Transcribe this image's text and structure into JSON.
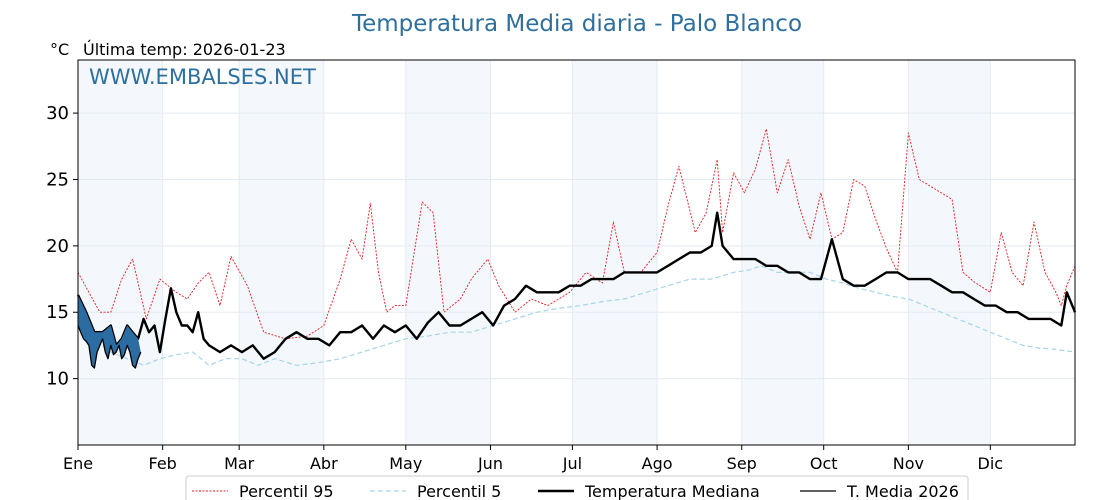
{
  "chart_data": {
    "type": "line",
    "title": "Temperatura Media diaria - Palo Blanco",
    "subtitle": "Última temp: 2026-01-23",
    "unit": "°C",
    "watermark": "WWW.EMBALSES.NET",
    "ylim": [
      5,
      34
    ],
    "xlim": [
      0,
      365
    ],
    "yticks": [
      10,
      15,
      20,
      25,
      30
    ],
    "months": [
      "Ene",
      "Feb",
      "Mar",
      "Abr",
      "May",
      "Jun",
      "Jul",
      "Ago",
      "Sep",
      "Oct",
      "Nov",
      "Dic"
    ],
    "month_starts": [
      0,
      31,
      59,
      90,
      120,
      151,
      181,
      212,
      243,
      273,
      304,
      334
    ],
    "grid": true,
    "legend_position": "bottom",
    "series": [
      {
        "name": "Percentil 95",
        "color": "#e31a1c",
        "style": "dotted",
        "points": [
          [
            0,
            18
          ],
          [
            4,
            16.5
          ],
          [
            8,
            15
          ],
          [
            12,
            15
          ],
          [
            16,
            17.5
          ],
          [
            20,
            19
          ],
          [
            25,
            14.5
          ],
          [
            30,
            17.5
          ],
          [
            36,
            16.5
          ],
          [
            40,
            16
          ],
          [
            44,
            17.2
          ],
          [
            48,
            18
          ],
          [
            52,
            15.5
          ],
          [
            56,
            19.2
          ],
          [
            62,
            17
          ],
          [
            68,
            13.5
          ],
          [
            76,
            13
          ],
          [
            84,
            13.2
          ],
          [
            90,
            14
          ],
          [
            96,
            17.5
          ],
          [
            100,
            20.5
          ],
          [
            104,
            19
          ],
          [
            107,
            23.2
          ],
          [
            110,
            18
          ],
          [
            113,
            15
          ],
          [
            116,
            15.5
          ],
          [
            120,
            15.5
          ],
          [
            126,
            23.3
          ],
          [
            130,
            22.5
          ],
          [
            134,
            15
          ],
          [
            140,
            16
          ],
          [
            144,
            17.5
          ],
          [
            150,
            19
          ],
          [
            154,
            17
          ],
          [
            160,
            15
          ],
          [
            166,
            16
          ],
          [
            172,
            15.5
          ],
          [
            180,
            16.5
          ],
          [
            186,
            18
          ],
          [
            192,
            17.2
          ],
          [
            196,
            21.8
          ],
          [
            200,
            18
          ],
          [
            206,
            18
          ],
          [
            212,
            19.5
          ],
          [
            216,
            23
          ],
          [
            220,
            26
          ],
          [
            226,
            21
          ],
          [
            230,
            22.5
          ],
          [
            234,
            26.5
          ],
          [
            236,
            21
          ],
          [
            240,
            25.5
          ],
          [
            244,
            24
          ],
          [
            248,
            25.8
          ],
          [
            252,
            28.8
          ],
          [
            256,
            24
          ],
          [
            260,
            26.5
          ],
          [
            264,
            23
          ],
          [
            268,
            20.5
          ],
          [
            272,
            24
          ],
          [
            276,
            20.5
          ],
          [
            280,
            21
          ],
          [
            284,
            25
          ],
          [
            288,
            24.5
          ],
          [
            292,
            22
          ],
          [
            296,
            19.8
          ],
          [
            300,
            18
          ],
          [
            304,
            28.5
          ],
          [
            308,
            25
          ],
          [
            312,
            24.5
          ],
          [
            316,
            24
          ],
          [
            320,
            23.5
          ],
          [
            324,
            18
          ],
          [
            328,
            17.3
          ],
          [
            334,
            16.5
          ],
          [
            338,
            21
          ],
          [
            342,
            18
          ],
          [
            346,
            17
          ],
          [
            350,
            21.8
          ],
          [
            354,
            18
          ],
          [
            358,
            16.5
          ],
          [
            360,
            15.5
          ],
          [
            362,
            17
          ],
          [
            365,
            18.5
          ]
        ]
      },
      {
        "name": "Percentil 5",
        "color": "#a6d5e8",
        "style": "dashed",
        "points": [
          [
            0,
            14
          ],
          [
            6,
            13
          ],
          [
            12,
            12
          ],
          [
            18,
            11.5
          ],
          [
            24,
            11
          ],
          [
            30,
            11.5
          ],
          [
            36,
            11.8
          ],
          [
            42,
            12
          ],
          [
            48,
            11
          ],
          [
            54,
            11.5
          ],
          [
            60,
            11.5
          ],
          [
            66,
            11
          ],
          [
            72,
            11.5
          ],
          [
            80,
            11
          ],
          [
            88,
            11.2
          ],
          [
            96,
            11.5
          ],
          [
            104,
            12
          ],
          [
            112,
            12.5
          ],
          [
            120,
            13
          ],
          [
            128,
            13.2
          ],
          [
            136,
            13.5
          ],
          [
            144,
            13.5
          ],
          [
            152,
            14
          ],
          [
            160,
            14.5
          ],
          [
            168,
            15
          ],
          [
            176,
            15.3
          ],
          [
            184,
            15.5
          ],
          [
            192,
            15.8
          ],
          [
            200,
            16
          ],
          [
            208,
            16.5
          ],
          [
            216,
            17
          ],
          [
            224,
            17.5
          ],
          [
            232,
            17.5
          ],
          [
            240,
            18
          ],
          [
            246,
            18.2
          ],
          [
            250,
            18.5
          ],
          [
            256,
            18
          ],
          [
            262,
            18
          ],
          [
            268,
            18
          ],
          [
            274,
            17.5
          ],
          [
            280,
            17.2
          ],
          [
            286,
            16.8
          ],
          [
            292,
            16.5
          ],
          [
            298,
            16.2
          ],
          [
            304,
            16
          ],
          [
            310,
            15.5
          ],
          [
            316,
            15
          ],
          [
            322,
            14.5
          ],
          [
            328,
            14
          ],
          [
            334,
            13.5
          ],
          [
            340,
            13
          ],
          [
            346,
            12.5
          ],
          [
            352,
            12.3
          ],
          [
            358,
            12.2
          ],
          [
            365,
            12
          ]
        ]
      },
      {
        "name": "Temperatura Mediana",
        "color": "#000000",
        "style": "solid",
        "points": [
          [
            0,
            16.3
          ],
          [
            3,
            15
          ],
          [
            6,
            13.5
          ],
          [
            9,
            13.5
          ],
          [
            12,
            14
          ],
          [
            14,
            12.5
          ],
          [
            16,
            13
          ],
          [
            18,
            14
          ],
          [
            20,
            13.5
          ],
          [
            22,
            13
          ],
          [
            24,
            14.5
          ],
          [
            26,
            13.5
          ],
          [
            28,
            14
          ],
          [
            30,
            12
          ],
          [
            32,
            14.5
          ],
          [
            34,
            16.8
          ],
          [
            36,
            15
          ],
          [
            38,
            14
          ],
          [
            40,
            14
          ],
          [
            42,
            13.5
          ],
          [
            44,
            15
          ],
          [
            46,
            13
          ],
          [
            48,
            12.5
          ],
          [
            52,
            12
          ],
          [
            56,
            12.5
          ],
          [
            60,
            12
          ],
          [
            64,
            12.5
          ],
          [
            68,
            11.5
          ],
          [
            72,
            12
          ],
          [
            76,
            13
          ],
          [
            80,
            13.5
          ],
          [
            84,
            13
          ],
          [
            88,
            13
          ],
          [
            92,
            12.5
          ],
          [
            96,
            13.5
          ],
          [
            100,
            13.5
          ],
          [
            104,
            14
          ],
          [
            108,
            13
          ],
          [
            112,
            14
          ],
          [
            116,
            13.5
          ],
          [
            120,
            14
          ],
          [
            124,
            13
          ],
          [
            128,
            14.2
          ],
          [
            132,
            15
          ],
          [
            136,
            14
          ],
          [
            140,
            14
          ],
          [
            144,
            14.5
          ],
          [
            148,
            15
          ],
          [
            152,
            14
          ],
          [
            156,
            15.5
          ],
          [
            160,
            16
          ],
          [
            164,
            17
          ],
          [
            168,
            16.5
          ],
          [
            172,
            16.5
          ],
          [
            176,
            16.5
          ],
          [
            180,
            17
          ],
          [
            184,
            17
          ],
          [
            188,
            17.5
          ],
          [
            192,
            17.5
          ],
          [
            196,
            17.5
          ],
          [
            200,
            18
          ],
          [
            204,
            18
          ],
          [
            208,
            18
          ],
          [
            212,
            18
          ],
          [
            216,
            18.5
          ],
          [
            220,
            19
          ],
          [
            224,
            19.5
          ],
          [
            228,
            19.5
          ],
          [
            232,
            20
          ],
          [
            234,
            22.5
          ],
          [
            236,
            20
          ],
          [
            240,
            19
          ],
          [
            244,
            19
          ],
          [
            248,
            19
          ],
          [
            252,
            18.5
          ],
          [
            256,
            18.5
          ],
          [
            260,
            18
          ],
          [
            264,
            18
          ],
          [
            268,
            17.5
          ],
          [
            272,
            17.5
          ],
          [
            276,
            20.5
          ],
          [
            280,
            17.5
          ],
          [
            284,
            17
          ],
          [
            288,
            17
          ],
          [
            292,
            17.5
          ],
          [
            296,
            18
          ],
          [
            300,
            18
          ],
          [
            304,
            17.5
          ],
          [
            308,
            17.5
          ],
          [
            312,
            17.5
          ],
          [
            316,
            17
          ],
          [
            320,
            16.5
          ],
          [
            324,
            16.5
          ],
          [
            328,
            16
          ],
          [
            332,
            15.5
          ],
          [
            336,
            15.5
          ],
          [
            340,
            15
          ],
          [
            344,
            15
          ],
          [
            348,
            14.5
          ],
          [
            352,
            14.5
          ],
          [
            356,
            14.5
          ],
          [
            360,
            14
          ],
          [
            362,
            16.5
          ],
          [
            365,
            15
          ]
        ]
      },
      {
        "name": "T. Media 2026",
        "color": "#000000",
        "fill": "#2b6ca3",
        "style": "solid",
        "points": [
          [
            0,
            14
          ],
          [
            1,
            13.5
          ],
          [
            2,
            13
          ],
          [
            3,
            12.8
          ],
          [
            4,
            12.5
          ],
          [
            5,
            11
          ],
          [
            6,
            10.8
          ],
          [
            7,
            12
          ],
          [
            8,
            12.5
          ],
          [
            9,
            13
          ],
          [
            10,
            12
          ],
          [
            11,
            11.5
          ],
          [
            12,
            12.5
          ],
          [
            13,
            11.8
          ],
          [
            14,
            12
          ],
          [
            15,
            12.5
          ],
          [
            16,
            11.5
          ],
          [
            17,
            11.8
          ],
          [
            18,
            12.5
          ],
          [
            19,
            12
          ],
          [
            20,
            11
          ],
          [
            21,
            10.8
          ],
          [
            22,
            11.5
          ],
          [
            23,
            12
          ]
        ]
      }
    ]
  }
}
